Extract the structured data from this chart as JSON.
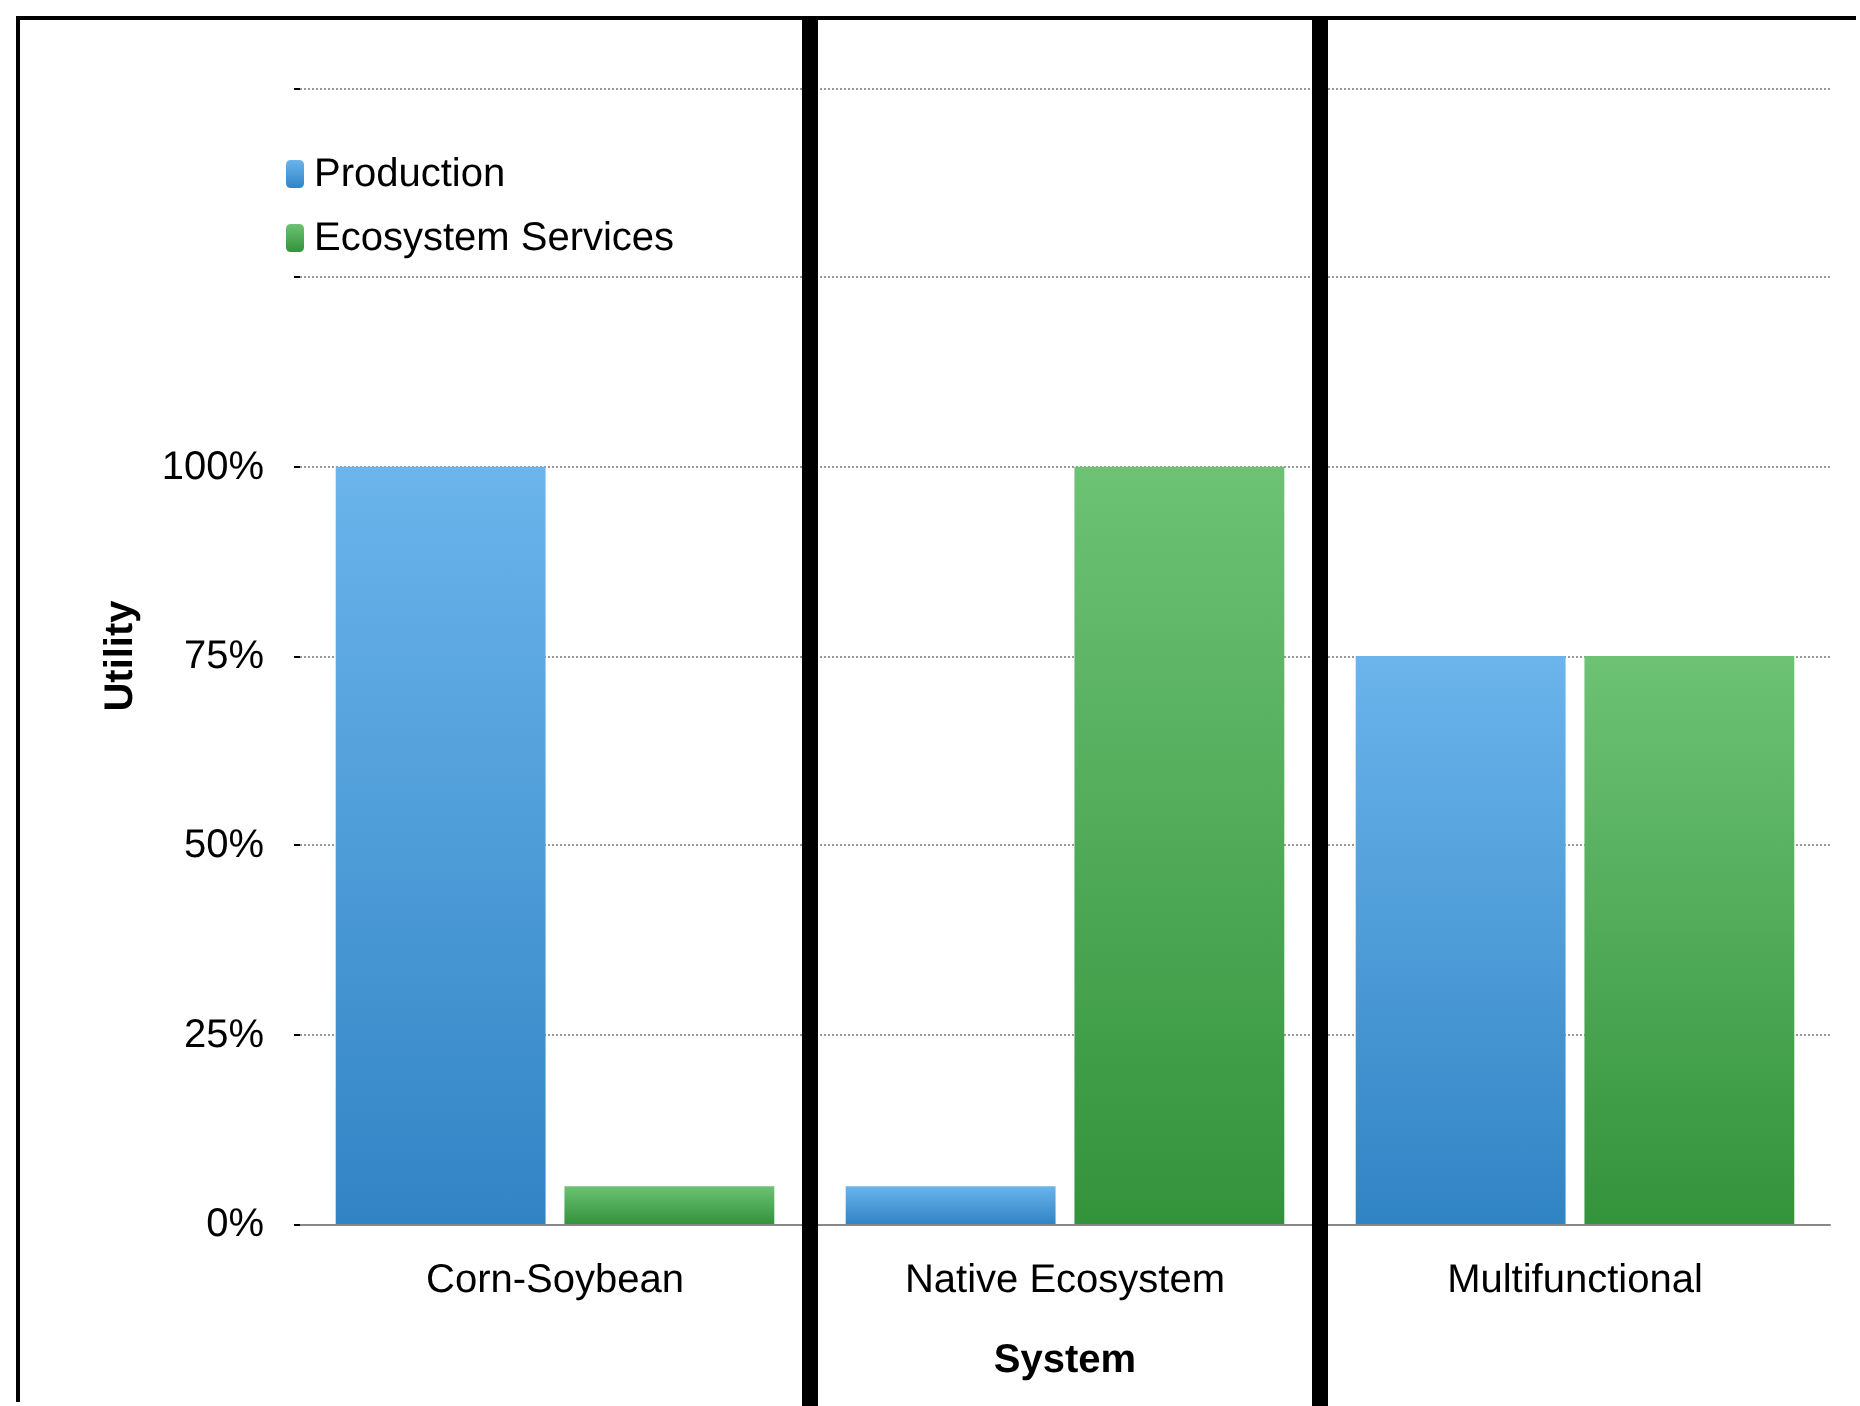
{
  "chart_data": {
    "type": "bar",
    "xlabel": "System",
    "ylabel": "Utility",
    "categories": [
      "Corn-Soybean",
      "Native Ecosystem",
      "Multifunctional"
    ],
    "series": [
      {
        "name": "Production",
        "color": "#3a9be6",
        "values": [
          100,
          5,
          75
        ]
      },
      {
        "name": "Ecosystem Services",
        "color": "#3cad45",
        "values": [
          5,
          100,
          75
        ]
      }
    ],
    "ylim": [
      0,
      150
    ],
    "yticks": [
      {
        "value": 0,
        "label": "0%"
      },
      {
        "value": 25,
        "label": "25%"
      },
      {
        "value": 50,
        "label": "50%"
      },
      {
        "value": 75,
        "label": "75%"
      },
      {
        "value": 100,
        "label": "100%"
      },
      {
        "value": 125,
        "label": null
      },
      {
        "value": 150,
        "label": null
      }
    ],
    "grid": "y",
    "legend": "top left"
  }
}
